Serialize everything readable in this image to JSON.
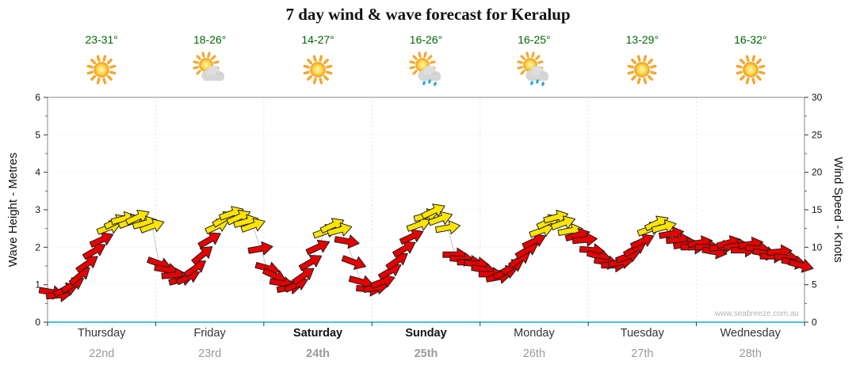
{
  "title": "7 day wind & wave forecast for Keralup",
  "watermark": "www.seabreeze.com.au",
  "axes": {
    "left_label": "Wave Height - Metres",
    "right_label": "Wind Speed - Knots",
    "left_ticks": [
      0,
      1,
      2,
      3,
      4,
      5,
      6
    ],
    "right_ticks": [
      0,
      5,
      10,
      15,
      20,
      25,
      30
    ]
  },
  "days": [
    {
      "name": "Thursday",
      "date": "22nd",
      "temp": "23-31°",
      "icon": "sunny",
      "weekend": false
    },
    {
      "name": "Friday",
      "date": "23rd",
      "temp": "18-26°",
      "icon": "partly",
      "weekend": false
    },
    {
      "name": "Saturday",
      "date": "24th",
      "temp": "14-27°",
      "icon": "sunny",
      "weekend": true
    },
    {
      "name": "Sunday",
      "date": "25th",
      "temp": "16-26°",
      "icon": "showers",
      "weekend": true
    },
    {
      "name": "Monday",
      "date": "26th",
      "temp": "16-25°",
      "icon": "showers",
      "weekend": false
    },
    {
      "name": "Tuesday",
      "date": "27th",
      "temp": "13-29°",
      "icon": "sunny",
      "weekend": false
    },
    {
      "name": "Wednesday",
      "date": "28th",
      "temp": "16-32°",
      "icon": "sunny",
      "weekend": false
    }
  ],
  "chart_data": {
    "type": "wind-arrow-time-series",
    "title": "7 day wind & wave forecast for Keralup",
    "x_categories": [
      "Thursday 22nd",
      "Friday 23rd",
      "Saturday 24th",
      "Sunday 25th",
      "Monday 26th",
      "Tuesday 27th",
      "Wednesday 28th"
    ],
    "left_axis": {
      "label": "Wave Height - Metres",
      "range": [
        0,
        6
      ],
      "unit": "m"
    },
    "right_axis": {
      "label": "Wind Speed - Knots",
      "range": [
        0,
        30
      ],
      "unit": "kn"
    },
    "grid": "faint-dashed",
    "colors": {
      "normal": "#e60000",
      "strong": "#ffe400"
    },
    "yellow_threshold_knots": 12,
    "baseline_color": "#45c5d8",
    "point_format": [
      "day_offset",
      "wind_speed_knots",
      "direction_deg_cw_from_east"
    ],
    "points": [
      [
        0.033,
        4.0,
        10
      ],
      [
        0.1,
        3.6,
        -5
      ],
      [
        0.167,
        4.3,
        -20
      ],
      [
        0.233,
        5.0,
        -30
      ],
      [
        0.3,
        6.2,
        -40
      ],
      [
        0.367,
        7.8,
        -35
      ],
      [
        0.433,
        9.5,
        -30
      ],
      [
        0.5,
        11.0,
        -25
      ],
      [
        0.567,
        12.6,
        -20
      ],
      [
        0.633,
        13.4,
        -25
      ],
      [
        0.7,
        13.8,
        -15
      ],
      [
        0.767,
        13.4,
        -20
      ],
      [
        0.833,
        14.0,
        -25
      ],
      [
        0.9,
        13.2,
        -15
      ],
      [
        0.967,
        12.8,
        -20
      ],
      [
        1.033,
        7.8,
        20
      ],
      [
        1.1,
        7.0,
        10
      ],
      [
        1.167,
        6.3,
        -5
      ],
      [
        1.233,
        5.7,
        -15
      ],
      [
        1.3,
        6.0,
        -25
      ],
      [
        1.367,
        7.2,
        -35
      ],
      [
        1.433,
        9.0,
        -40
      ],
      [
        1.5,
        11.0,
        -30
      ],
      [
        1.567,
        12.8,
        -25
      ],
      [
        1.633,
        13.8,
        -30
      ],
      [
        1.7,
        14.5,
        -20
      ],
      [
        1.767,
        14.0,
        -25
      ],
      [
        1.833,
        13.4,
        -15
      ],
      [
        1.9,
        12.9,
        -20
      ],
      [
        1.967,
        9.8,
        -10
      ],
      [
        2.033,
        7.2,
        15
      ],
      [
        2.1,
        6.2,
        25
      ],
      [
        2.167,
        5.2,
        10
      ],
      [
        2.233,
        4.6,
        -10
      ],
      [
        2.3,
        5.0,
        -25
      ],
      [
        2.367,
        6.2,
        -35
      ],
      [
        2.433,
        8.0,
        -30
      ],
      [
        2.5,
        10.0,
        -25
      ],
      [
        2.567,
        12.1,
        -20
      ],
      [
        2.633,
        12.9,
        -25
      ],
      [
        2.7,
        12.3,
        -15
      ],
      [
        2.767,
        10.8,
        10
      ],
      [
        2.833,
        8.0,
        20
      ],
      [
        2.9,
        5.4,
        15
      ],
      [
        2.967,
        4.4,
        5
      ],
      [
        3.033,
        4.6,
        -10
      ],
      [
        3.1,
        5.4,
        -20
      ],
      [
        3.167,
        6.8,
        -30
      ],
      [
        3.233,
        8.2,
        -35
      ],
      [
        3.3,
        9.8,
        -30
      ],
      [
        3.367,
        11.4,
        -25
      ],
      [
        3.433,
        13.0,
        -20
      ],
      [
        3.5,
        14.2,
        -15
      ],
      [
        3.567,
        14.8,
        -25
      ],
      [
        3.633,
        13.8,
        -20
      ],
      [
        3.7,
        12.6,
        -10
      ],
      [
        3.767,
        9.0,
        0
      ],
      [
        3.833,
        8.4,
        5
      ],
      [
        3.9,
        8.0,
        0
      ],
      [
        3.967,
        7.8,
        5
      ],
      [
        4.033,
        7.0,
        10
      ],
      [
        4.1,
        6.4,
        0
      ],
      [
        4.167,
        6.0,
        -10
      ],
      [
        4.233,
        6.6,
        -20
      ],
      [
        4.3,
        7.4,
        -30
      ],
      [
        4.367,
        8.4,
        -35
      ],
      [
        4.433,
        9.6,
        -30
      ],
      [
        4.5,
        10.8,
        -25
      ],
      [
        4.567,
        12.2,
        -20
      ],
      [
        4.633,
        13.4,
        -25
      ],
      [
        4.7,
        14.0,
        -15
      ],
      [
        4.767,
        13.2,
        -20
      ],
      [
        4.833,
        12.2,
        -10
      ],
      [
        4.9,
        11.6,
        -15
      ],
      [
        4.967,
        11.0,
        -5
      ],
      [
        5.033,
        9.6,
        5
      ],
      [
        5.1,
        8.8,
        15
      ],
      [
        5.167,
        8.0,
        10
      ],
      [
        5.233,
        7.6,
        0
      ],
      [
        5.3,
        8.0,
        -10
      ],
      [
        5.367,
        8.8,
        -20
      ],
      [
        5.433,
        9.8,
        -30
      ],
      [
        5.5,
        10.8,
        -25
      ],
      [
        5.567,
        12.4,
        -20
      ],
      [
        5.633,
        13.2,
        -25
      ],
      [
        5.7,
        12.7,
        -15
      ],
      [
        5.767,
        11.8,
        -10
      ],
      [
        5.833,
        11.0,
        -5
      ],
      [
        5.9,
        10.4,
        -10
      ],
      [
        5.967,
        10.0,
        0
      ],
      [
        6.033,
        10.6,
        -10
      ],
      [
        6.1,
        10.0,
        0
      ],
      [
        6.167,
        9.4,
        10
      ],
      [
        6.233,
        10.0,
        -5
      ],
      [
        6.3,
        10.6,
        -15
      ],
      [
        6.367,
        10.2,
        -10
      ],
      [
        6.433,
        9.6,
        0
      ],
      [
        6.5,
        10.4,
        -10
      ],
      [
        6.567,
        9.8,
        5
      ],
      [
        6.633,
        9.2,
        10
      ],
      [
        6.7,
        8.8,
        0
      ],
      [
        6.767,
        9.4,
        -5
      ],
      [
        6.833,
        8.6,
        5
      ],
      [
        6.9,
        8.0,
        10
      ],
      [
        6.967,
        7.6,
        15
      ]
    ]
  }
}
